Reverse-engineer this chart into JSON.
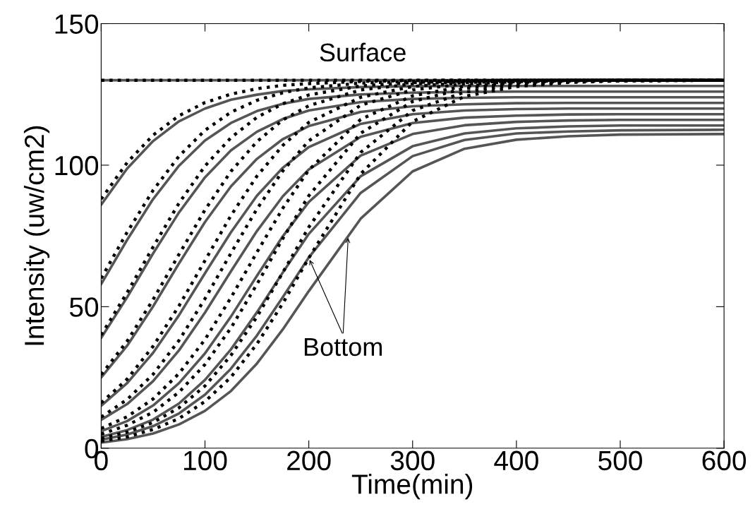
{
  "chart_data": {
    "type": "line",
    "xlabel": "Time(min)",
    "ylabel": "Intensity (uw/cm2)",
    "x": [
      0,
      25,
      50,
      75,
      100,
      125,
      150,
      175,
      200,
      250,
      300,
      350,
      400,
      450,
      500,
      600
    ],
    "xlim": [
      0,
      600
    ],
    "xticks": [
      0,
      100,
      200,
      300,
      400,
      500,
      600
    ],
    "ylim": [
      0,
      150
    ],
    "yticks": [
      0,
      50,
      100,
      150
    ],
    "grid": false,
    "marker": "none",
    "annotations": [
      "Surface",
      {
        "text": "Bottom",
        "x": 238,
        "y": 75
      }
    ],
    "series": [
      {
        "color": "#555555",
        "line_style": "solid",
        "values": [
          130,
          130,
          130,
          130,
          130,
          130,
          130,
          130,
          130,
          130,
          130,
          130,
          130,
          130,
          130,
          130
        ]
      },
      {
        "color": "#000000",
        "line_style": "dotted",
        "values": [
          130,
          130,
          130,
          130,
          130,
          130,
          130,
          130,
          130,
          130,
          130,
          130,
          130,
          130,
          130,
          130
        ]
      },
      {
        "color": "#555555",
        "line_style": "solid",
        "values": [
          86,
          98.8,
          108.5,
          115.5,
          120,
          123.1,
          124.9,
          126.2,
          126.8,
          127.6,
          127.9,
          128,
          128,
          128,
          128,
          128
        ]
      },
      {
        "color": "#555555",
        "line_style": "solid",
        "values": [
          58,
          73.6,
          88,
          99.8,
          108.7,
          114.9,
          119.1,
          121.7,
          123.4,
          125,
          125.6,
          125.9,
          126,
          126,
          126,
          126
        ]
      },
      {
        "color": "#555555",
        "line_style": "solid",
        "values": [
          39,
          53.3,
          68.8,
          83.3,
          95.7,
          105.2,
          111.8,
          116.3,
          119.3,
          122.3,
          123.4,
          123.8,
          124,
          124,
          124,
          124
        ]
      },
      {
        "color": "#555555",
        "line_style": "solid",
        "values": [
          25,
          36.2,
          50.1,
          65.3,
          79.9,
          92.5,
          102.2,
          109.2,
          113.8,
          118.8,
          120.8,
          121.5,
          121.9,
          122,
          122,
          122
        ]
      },
      {
        "color": "#555555",
        "line_style": "solid",
        "values": [
          15,
          23,
          33.7,
          47,
          61.8,
          76.3,
          89.2,
          99.1,
          106.4,
          114.6,
          118,
          119.3,
          119.8,
          120,
          120,
          120
        ]
      },
      {
        "color": "#555555",
        "line_style": "solid",
        "values": [
          10,
          15.6,
          23.7,
          34.6,
          47.9,
          62.5,
          76.7,
          89,
          98.5,
          110,
          114.9,
          116.8,
          117.5,
          117.9,
          118,
          118
        ]
      },
      {
        "color": "#555555",
        "line_style": "solid",
        "values": [
          6,
          9.6,
          15.1,
          23,
          33.5,
          46.5,
          60.9,
          74.9,
          87,
          103.4,
          111,
          114.1,
          115.3,
          115.8,
          116,
          116
        ]
      },
      {
        "color": "#555555",
        "line_style": "solid",
        "values": [
          4,
          6.4,
          10.1,
          15.8,
          24.1,
          34.9,
          48,
          62.1,
          75.7,
          96.1,
          106.7,
          111.2,
          113,
          113.7,
          114,
          114
        ]
      },
      {
        "color": "#555555",
        "line_style": "solid",
        "values": [
          3,
          4.8,
          7.8,
          12.3,
          18.9,
          28.1,
          39.8,
          53.4,
          67.4,
          90.2,
          103.2,
          108.9,
          111.2,
          111.9,
          112.3,
          112.5
        ]
      },
      {
        "color": "#555555",
        "line_style": "solid",
        "values": [
          2,
          3.2,
          5.2,
          8.4,
          13.2,
          20.2,
          29.9,
          42,
          55.5,
          81.1,
          97.8,
          105.8,
          109,
          110.2,
          110.8,
          111
        ]
      },
      {
        "color": "#000000",
        "line_style": "dotted",
        "values": [
          88,
          100.9,
          110.6,
          117.5,
          122.1,
          125.1,
          127,
          128.2,
          128.8,
          129.6,
          129.9,
          130,
          130,
          130,
          130,
          130
        ]
      },
      {
        "color": "#000000",
        "line_style": "dotted",
        "values": [
          60,
          76.3,
          91.1,
          103.2,
          112.3,
          118.7,
          122.9,
          125.6,
          127.3,
          129,
          129.6,
          129.9,
          130,
          130,
          130,
          130
        ]
      },
      {
        "color": "#000000",
        "line_style": "dotted",
        "values": [
          40,
          55,
          71.1,
          86.6,
          99.7,
          109.7,
          116.9,
          121.7,
          124.8,
          128,
          129.2,
          129.7,
          130,
          130,
          130,
          130
        ]
      },
      {
        "color": "#000000",
        "line_style": "dotted",
        "values": [
          26,
          37.8,
          52.5,
          68.5,
          84.2,
          97.8,
          108.3,
          116,
          121,
          126.6,
          128.7,
          129.5,
          129.9,
          130,
          130,
          130
        ]
      },
      {
        "color": "#000000",
        "line_style": "dotted",
        "values": [
          16,
          24.4,
          36,
          50.3,
          66.3,
          82.2,
          96.1,
          107,
          115.1,
          124,
          127.8,
          129.2,
          129.7,
          130,
          130,
          130
        ]
      },
      {
        "color": "#000000",
        "line_style": "dotted",
        "values": [
          11,
          17.2,
          26.1,
          38.1,
          52.8,
          68.9,
          84.5,
          98,
          108.6,
          121.2,
          126.6,
          128.7,
          129.5,
          129.9,
          130,
          130
        ]
      },
      {
        "color": "#000000",
        "line_style": "dotted",
        "values": [
          7,
          11.1,
          17.4,
          26.4,
          38.4,
          53.2,
          69.2,
          84.8,
          98.3,
          116.2,
          124.5,
          127.9,
          129.2,
          129.7,
          130,
          130
        ]
      },
      {
        "color": "#000000",
        "line_style": "dotted",
        "values": [
          5,
          8.1,
          12.7,
          19.8,
          29.6,
          42.5,
          57.9,
          74.1,
          89.2,
          111.3,
          122.5,
          127.1,
          129,
          129.6,
          129.9,
          130
        ]
      },
      {
        "color": "#000000",
        "line_style": "dotted",
        "values": [
          3.5,
          5.7,
          9.1,
          14.3,
          22,
          32.8,
          46.4,
          62.1,
          78.1,
          104.5,
          119.3,
          125.8,
          128.4,
          129.5,
          129.8,
          130
        ]
      },
      {
        "color": "#000000",
        "line_style": "dotted",
        "values": [
          2.5,
          4,
          6.6,
          10.5,
          16.5,
          25.1,
          36.8,
          51.2,
          67.2,
          96.9,
          115.4,
          124.3,
          127.8,
          129.2,
          129.8,
          130
        ]
      }
    ]
  }
}
